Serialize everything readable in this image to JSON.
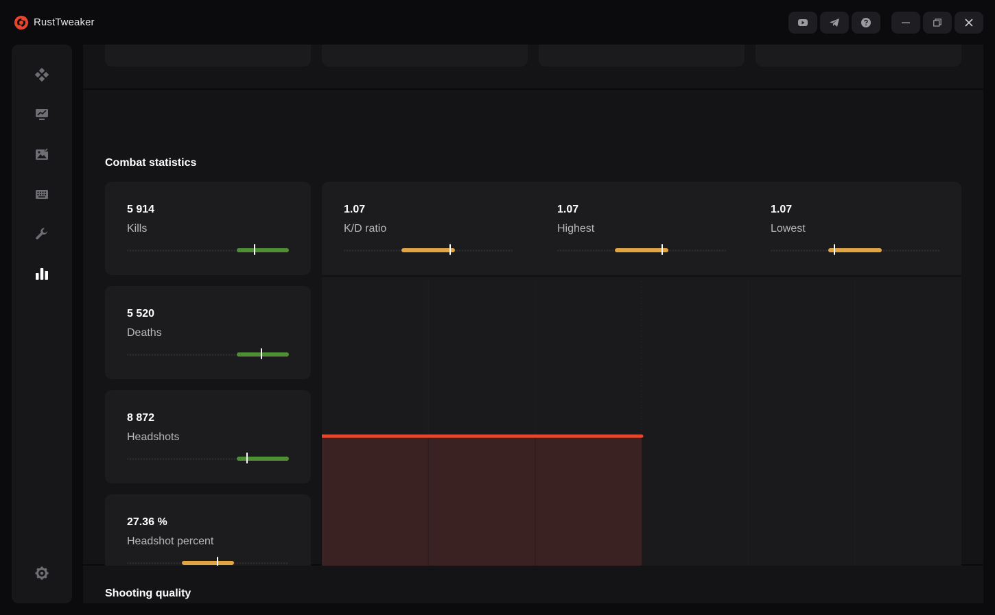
{
  "app": {
    "title": "RustTweaker",
    "accent": "#e8452c"
  },
  "titlebar": {
    "buttons": [
      {
        "name": "youtube-button",
        "icon": "youtube-icon"
      },
      {
        "name": "telegram-button",
        "icon": "telegram-icon"
      },
      {
        "name": "help-button",
        "icon": "help-icon"
      },
      {
        "name": "minimize-button",
        "icon": "minimize-icon"
      },
      {
        "name": "restore-button",
        "icon": "restore-icon"
      },
      {
        "name": "close-button",
        "icon": "close-icon"
      }
    ]
  },
  "sidebar": {
    "items": [
      {
        "icon": "gamepad-icon",
        "active": false
      },
      {
        "icon": "monitor-chart-icon",
        "active": false
      },
      {
        "icon": "image-edit-icon",
        "active": false
      },
      {
        "icon": "keyboard-icon",
        "active": false
      },
      {
        "icon": "wrench-icon",
        "active": false
      },
      {
        "icon": "bar-chart-icon",
        "active": true
      }
    ],
    "bottom": {
      "icon": "gear-icon"
    }
  },
  "combat": {
    "title": "Combat statistics",
    "stats": [
      {
        "value": "5 914",
        "label": "Kills",
        "fill_start": 0.68,
        "fill_end": 1.0,
        "marker": 0.79,
        "color": "#4e8f34"
      },
      {
        "value": "5 520",
        "label": "Deaths",
        "fill_start": 0.68,
        "fill_end": 1.0,
        "marker": 0.83,
        "color": "#4e8f34"
      },
      {
        "value": "8 872",
        "label": "Headshots",
        "fill_start": 0.68,
        "fill_end": 1.0,
        "marker": 0.74,
        "color": "#4e8f34"
      },
      {
        "value": "27.36 %",
        "label": "Headshot percent",
        "fill_start": 0.34,
        "fill_end": 0.66,
        "marker": 0.56,
        "color": "#e2a544"
      }
    ],
    "kd": [
      {
        "value": "1.07",
        "label": "K/D ratio",
        "fill_start": 0.34,
        "fill_end": 0.66,
        "marker": 0.63,
        "color": "#e2a544"
      },
      {
        "value": "1.07",
        "label": "Highest",
        "fill_start": 0.34,
        "fill_end": 0.66,
        "marker": 0.62,
        "color": "#e2a544"
      },
      {
        "value": "1.07",
        "label": "Lowest",
        "fill_start": 0.34,
        "fill_end": 0.66,
        "marker": 0.38,
        "color": "#e2a544"
      }
    ]
  },
  "chart_data": {
    "type": "area",
    "series_points": [
      {
        "x": 0,
        "y": 1.07
      },
      {
        "x": 1,
        "y": 1.07
      },
      {
        "x": 2,
        "y": 1.07
      },
      {
        "x": 3,
        "y": 1.07
      }
    ],
    "x_slots": 6,
    "ylim": [
      0,
      2.2
    ],
    "line_color": "#e8452c",
    "fill_color": "#3a2222",
    "grid": true
  },
  "shooting": {
    "title": "Shooting quality"
  }
}
